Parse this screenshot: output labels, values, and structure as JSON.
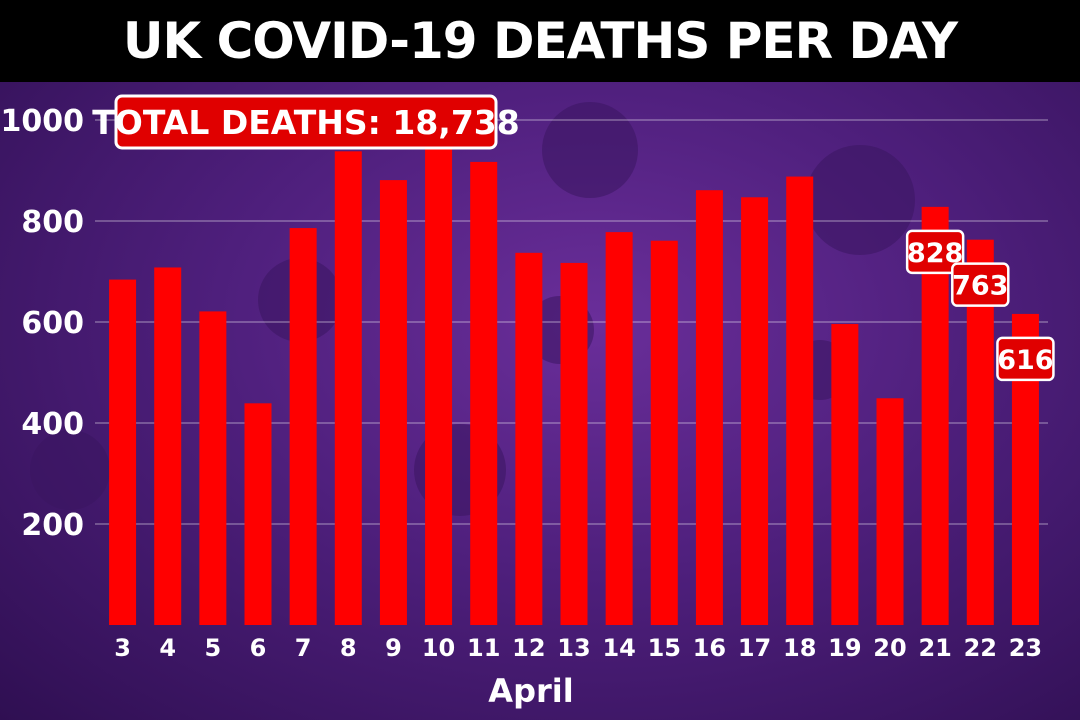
{
  "title": "UK COVID-19 DEATHS PER DAY",
  "total_label": "TOTAL DEATHS: 18,738",
  "colors": {
    "bar": "#ff0000",
    "title_bg": "#000000",
    "background": "#4e1f7c",
    "label_box": "#e00000"
  },
  "chart_data": {
    "type": "bar",
    "title": "UK COVID-19 DEATHS PER DAY",
    "xlabel": "April",
    "ylabel": "",
    "categories": [
      "3",
      "4",
      "5",
      "6",
      "7",
      "8",
      "9",
      "10",
      "11",
      "12",
      "13",
      "14",
      "15",
      "16",
      "17",
      "18",
      "19",
      "20",
      "21",
      "22",
      "23"
    ],
    "values": [
      684,
      708,
      621,
      439,
      786,
      938,
      881,
      980,
      917,
      737,
      717,
      778,
      761,
      861,
      847,
      888,
      596,
      449,
      828,
      763,
      616
    ],
    "data_labels": {
      "21": "828",
      "22": "763",
      "23": "616"
    },
    "yticks": [
      200,
      400,
      600,
      800,
      1000
    ],
    "ylim": [
      0,
      1000
    ],
    "grid": true
  }
}
